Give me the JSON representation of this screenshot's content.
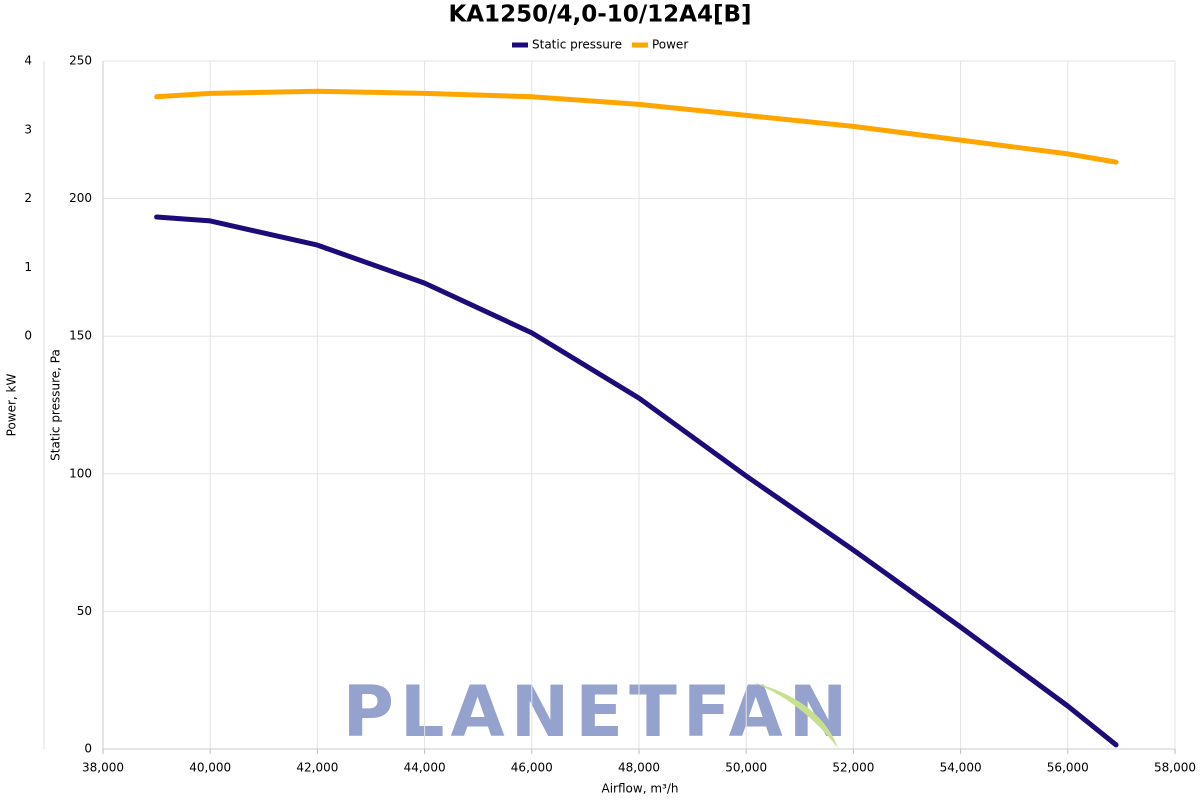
{
  "chart_data": {
    "type": "line",
    "title": "KA1250/4,0-10/12A4[B]",
    "x_label": "Airflow, m³/h",
    "y_label": "Static pressure, Pa",
    "y2_label": "Power, kW",
    "watermark": "PLANETFAN",
    "x": [
      39000,
      40000,
      42000,
      44000,
      46000,
      48000,
      50000,
      52000,
      54000,
      56000,
      56900
    ],
    "series": [
      {
        "name": "Static pressure",
        "color": "#1f0a7a",
        "values": [
          193.3,
          191.9,
          183.1,
          169.3,
          151.2,
          127.5,
          99.2,
          72.3,
          44.3,
          15.6,
          1.5
        ]
      },
      {
        "name": "Power",
        "color": "#ffa500",
        "axis": "y2",
        "values": [
          3.48,
          3.53,
          3.56,
          3.53,
          3.48,
          3.37,
          3.21,
          3.05,
          2.85,
          2.65,
          2.53
        ]
      }
    ],
    "xlim": [
      38000,
      58000
    ],
    "xticks": [
      {
        "value": 38000,
        "label": "38,000"
      },
      {
        "value": 40000,
        "label": "40,000"
      },
      {
        "value": 42000,
        "label": "42,000"
      },
      {
        "value": 44000,
        "label": "44,000"
      },
      {
        "value": 46000,
        "label": "46,000"
      },
      {
        "value": 48000,
        "label": "48,000"
      },
      {
        "value": 50000,
        "label": "50,000"
      },
      {
        "value": 52000,
        "label": "52,000"
      },
      {
        "value": 54000,
        "label": "54,000"
      },
      {
        "value": 56000,
        "label": "56,000"
      },
      {
        "value": 58000,
        "label": "58,000"
      }
    ],
    "ylim": [
      0,
      250
    ],
    "yticks": [
      0,
      50,
      100,
      150,
      200,
      250
    ],
    "y2lim": [
      -6,
      4
    ],
    "y2ticks": [
      0,
      1,
      2,
      3,
      4
    ],
    "grid": true,
    "legend": "top"
  }
}
